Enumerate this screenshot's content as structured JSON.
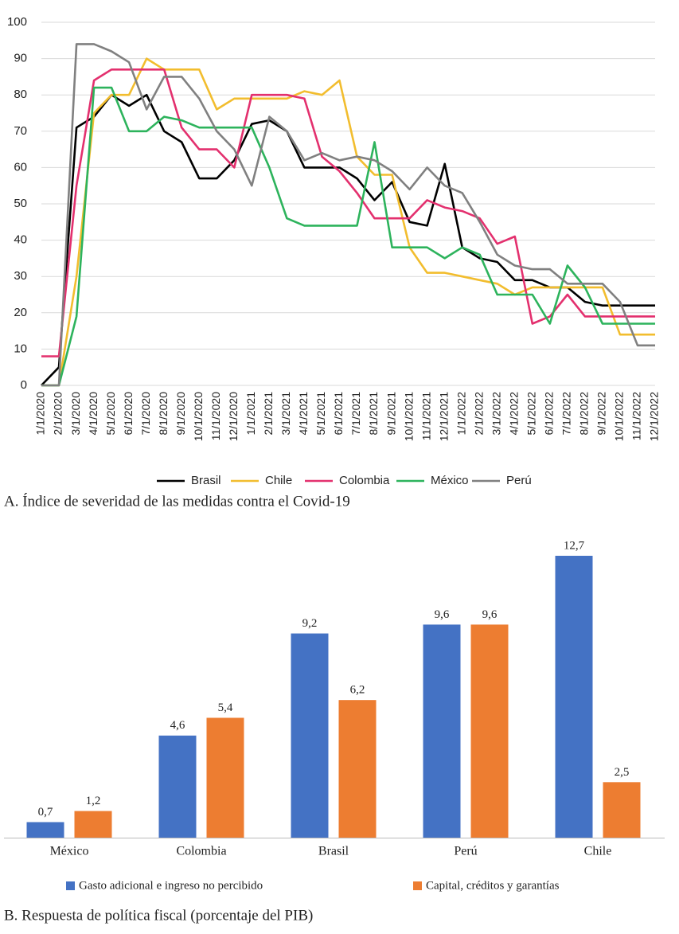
{
  "chart_data": [
    {
      "type": "line",
      "title": "A. Índice de severidad de las medidas contra el Covid-19",
      "categories": [
        "1/1/2020",
        "2/1/2020",
        "3/1/2020",
        "4/1/2020",
        "5/1/2020",
        "6/1/2020",
        "7/1/2020",
        "8/1/2020",
        "9/1/2020",
        "10/1/2020",
        "11/1/2020",
        "12/1/2020",
        "1/1/2021",
        "2/1/2021",
        "3/1/2021",
        "4/1/2021",
        "5/1/2021",
        "6/1/2021",
        "7/1/2021",
        "8/1/2021",
        "9/1/2021",
        "10/1/2021",
        "11/1/2021",
        "12/1/2021",
        "1/1/2022",
        "2/1/2022",
        "3/1/2022",
        "4/1/2022",
        "5/1/2022",
        "6/1/2022",
        "7/1/2022",
        "8/1/2022",
        "9/1/2022",
        "10/1/2022",
        "11/1/2022",
        "12/1/2022"
      ],
      "series": [
        {
          "name": "Brasil",
          "color": "#000000",
          "values": [
            0,
            5,
            71,
            74,
            80,
            77,
            80,
            70,
            67,
            57,
            57,
            62,
            72,
            73,
            70,
            60,
            60,
            60,
            57,
            51,
            56,
            45,
            44,
            61,
            38,
            35,
            34,
            29,
            29,
            27,
            27,
            23,
            22,
            22,
            22,
            22
          ]
        },
        {
          "name": "Chile",
          "color": "#f2bd2e",
          "values": [
            0,
            0,
            30,
            75,
            80,
            80,
            90,
            87,
            87,
            87,
            76,
            79,
            79,
            79,
            79,
            81,
            80,
            84,
            63,
            58,
            58,
            38,
            31,
            31,
            30,
            29,
            28,
            25,
            27,
            27,
            27,
            27,
            27,
            14,
            14,
            14
          ]
        },
        {
          "name": "Colombia",
          "color": "#e3306e",
          "values": [
            8,
            8,
            55,
            84,
            87,
            87,
            87,
            87,
            71,
            65,
            65,
            60,
            80,
            80,
            80,
            79,
            63,
            59,
            53,
            46,
            46,
            46,
            51,
            49,
            48,
            46,
            39,
            41,
            17,
            19,
            25,
            19,
            19,
            19,
            19,
            19
          ]
        },
        {
          "name": "México",
          "color": "#2db35c",
          "values": [
            0,
            0,
            19,
            82,
            82,
            70,
            70,
            74,
            73,
            71,
            71,
            71,
            71,
            60,
            46,
            44,
            44,
            44,
            44,
            67,
            38,
            38,
            38,
            35,
            38,
            36,
            25,
            25,
            25,
            17,
            33,
            27,
            17,
            17,
            17,
            17
          ]
        },
        {
          "name": "Perú",
          "color": "#808080",
          "values": [
            0,
            0,
            94,
            94,
            92,
            89,
            76,
            85,
            85,
            79,
            70,
            65,
            55,
            74,
            70,
            62,
            64,
            62,
            63,
            62,
            59,
            54,
            60,
            55,
            53,
            45,
            36,
            33,
            32,
            32,
            28,
            28,
            28,
            23,
            11,
            11
          ]
        }
      ],
      "ylim": [
        0,
        100
      ],
      "yticks": [
        0,
        10,
        20,
        30,
        40,
        50,
        60,
        70,
        80,
        90,
        100
      ],
      "grid": true
    },
    {
      "type": "bar",
      "title": "B. Respuesta de política fiscal (porcentaje del PIB)",
      "categories": [
        "México",
        "Colombia",
        "Brasil",
        "Perú",
        "Chile"
      ],
      "series": [
        {
          "name": "Gasto adicional e ingreso no percibido",
          "color": "#4472c4",
          "values": [
            0.7,
            4.6,
            9.2,
            9.6,
            12.7
          ],
          "value_labels": [
            "0,7",
            "4,6",
            "9,2",
            "9,6",
            "12,7"
          ]
        },
        {
          "name": "Capital, créditos y garantías",
          "color": "#ed7d31",
          "values": [
            1.2,
            5.4,
            6.2,
            9.6,
            2.5
          ],
          "value_labels": [
            "1,2",
            "5,4",
            "6,2",
            "9,6",
            "2,5"
          ]
        }
      ]
    }
  ]
}
